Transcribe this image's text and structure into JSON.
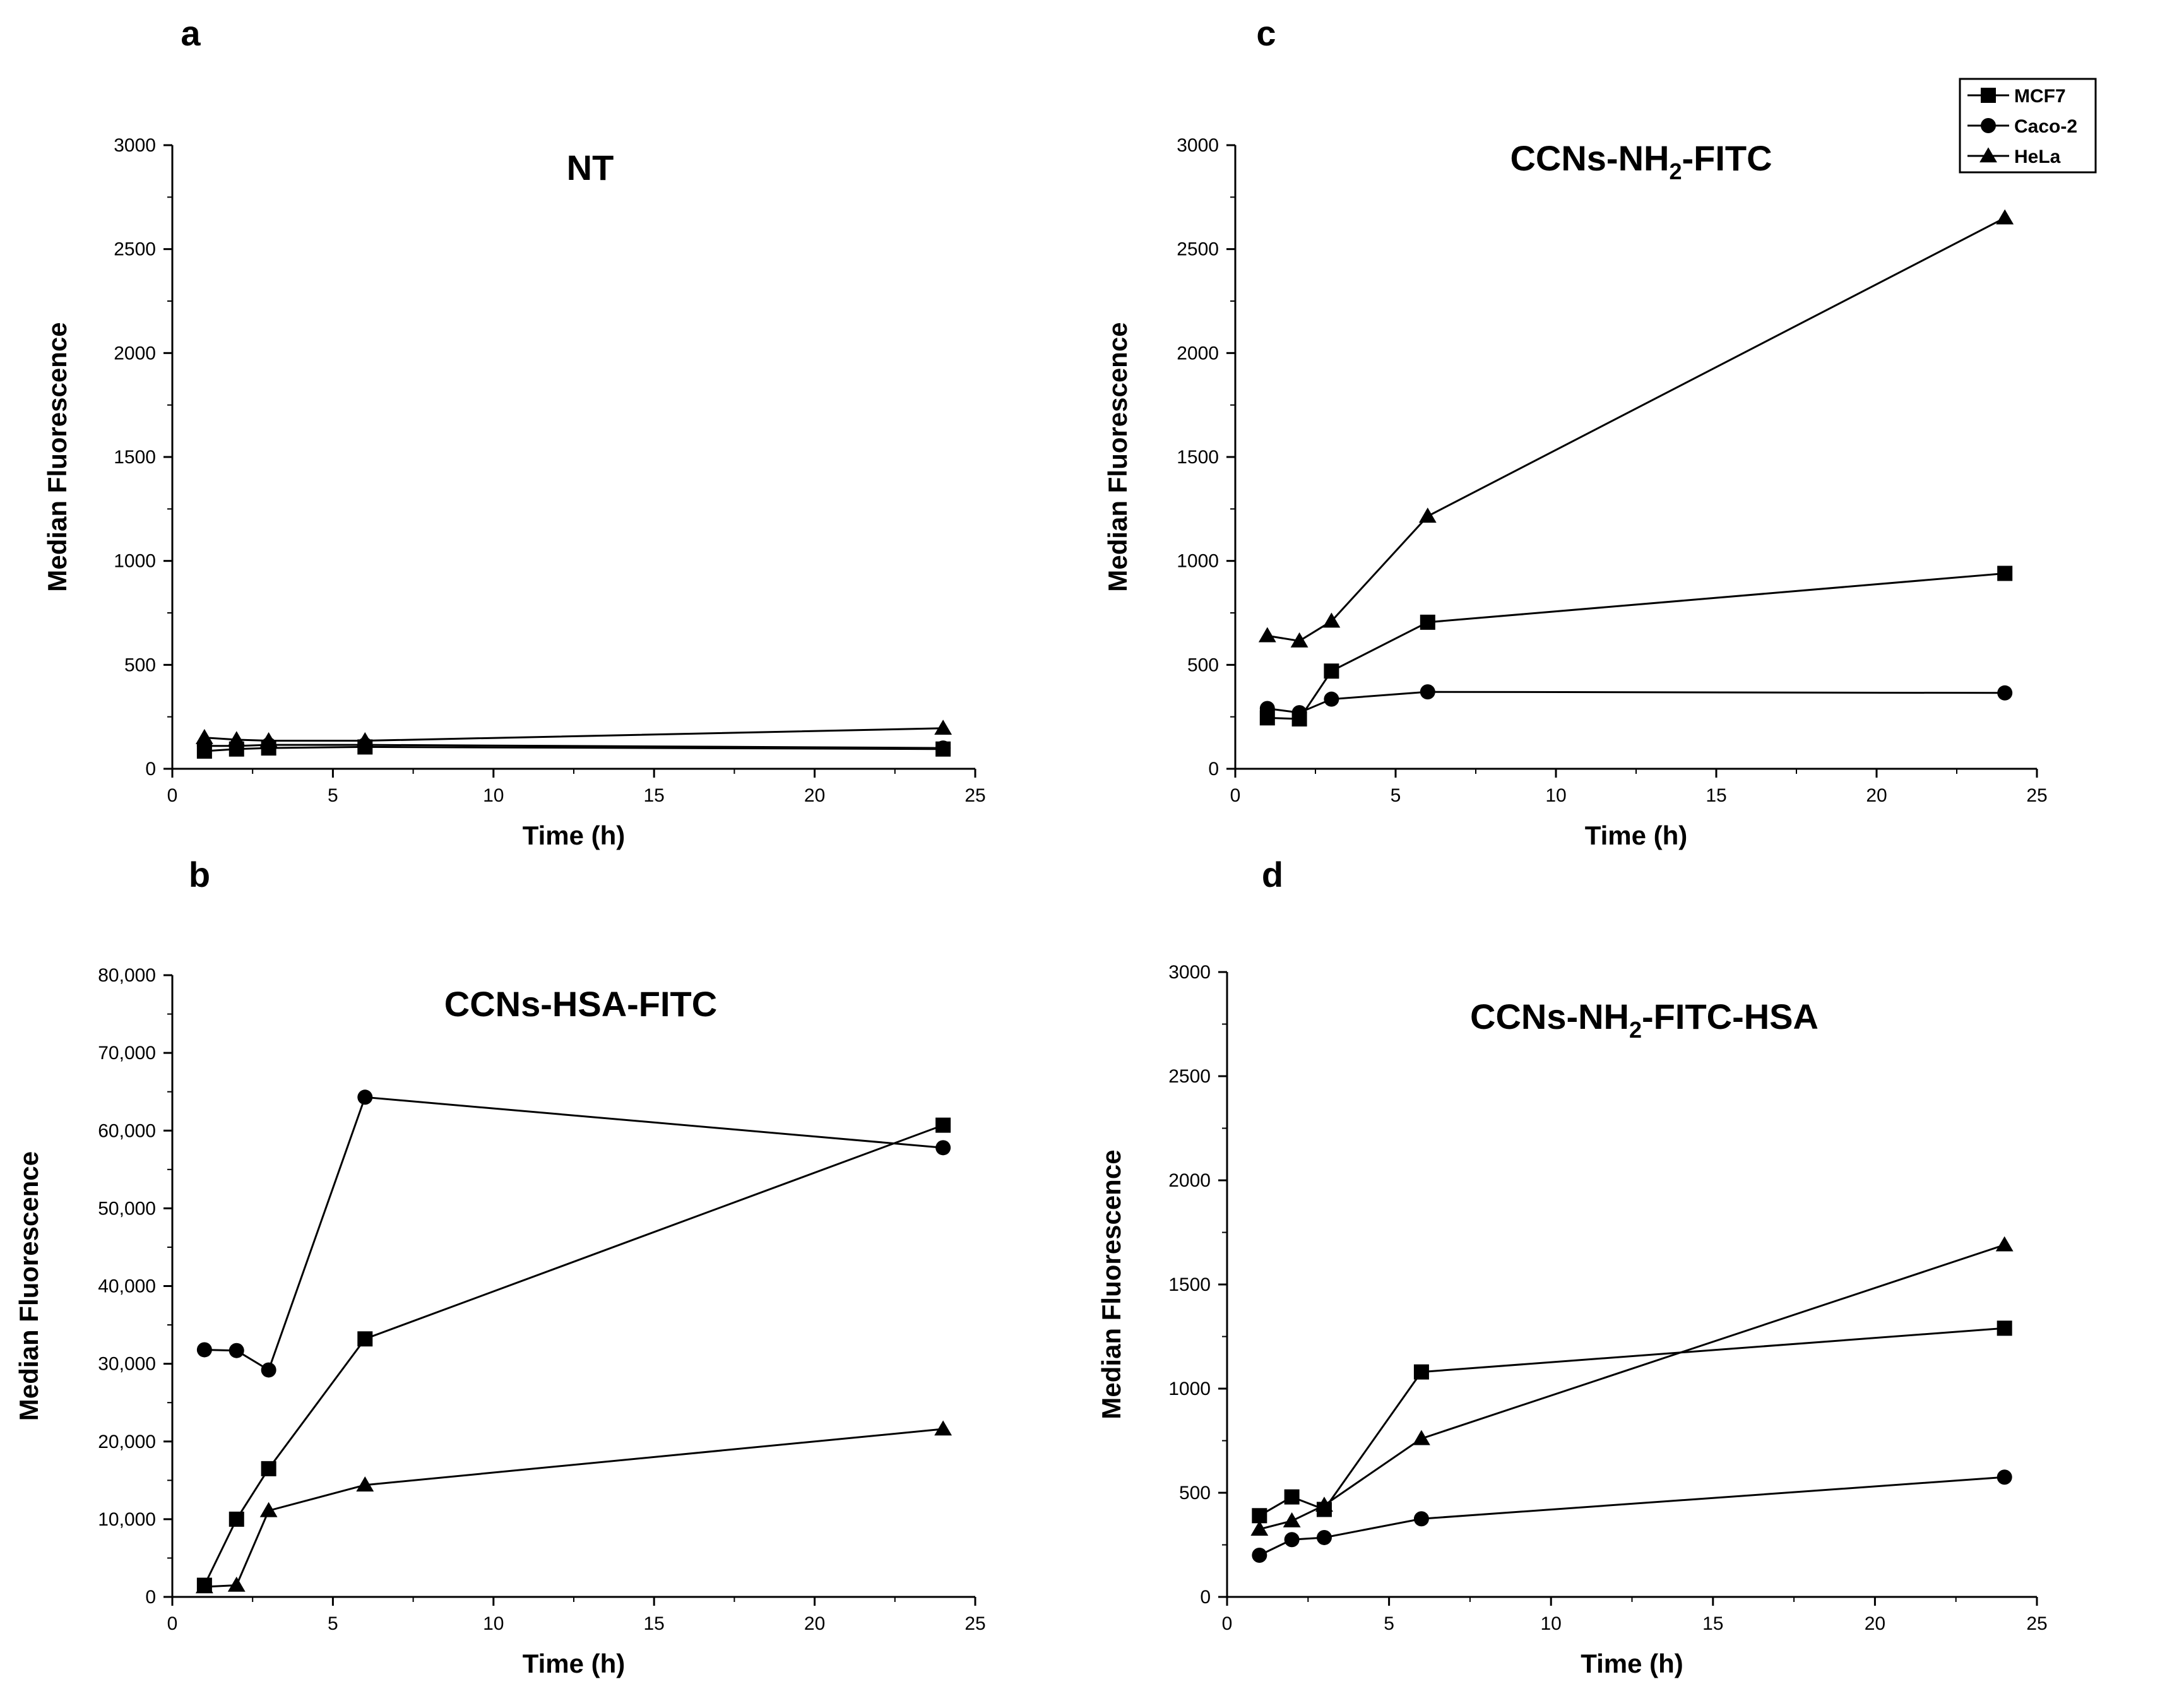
{
  "chart_data": [
    {
      "panel": "a",
      "type": "line",
      "title": "NT",
      "xlabel": "Time (h)",
      "ylabel": "Median Fluorescence",
      "xlim": [
        0,
        25
      ],
      "ylim": [
        0,
        3000
      ],
      "xticks": [
        0,
        5,
        10,
        15,
        20,
        25
      ],
      "yticks": [
        0,
        500,
        1000,
        1500,
        2000,
        2500,
        3000
      ],
      "x": [
        1,
        2,
        3,
        6,
        24
      ],
      "series": [
        {
          "name": "MCF7",
          "marker": "square",
          "values": [
            85,
            95,
            100,
            105,
            95
          ]
        },
        {
          "name": "Caco-2",
          "marker": "circle",
          "values": [
            110,
            110,
            115,
            115,
            100
          ]
        },
        {
          "name": "HeLa",
          "marker": "triangle",
          "values": [
            150,
            140,
            135,
            135,
            195
          ]
        }
      ]
    },
    {
      "panel": "b",
      "type": "line",
      "title": "CCNs-HSA-FITC",
      "xlabel": "Time (h)",
      "ylabel": "Median Fluorescence",
      "xlim": [
        0,
        25
      ],
      "ylim": [
        0,
        80000
      ],
      "xticks": [
        0,
        5,
        10,
        15,
        20,
        25
      ],
      "yticks": [
        0,
        10000,
        20000,
        30000,
        40000,
        50000,
        60000,
        70000,
        80000
      ],
      "ytick_labels": [
        "0",
        "10,000",
        "20,000",
        "30,000",
        "40,000",
        "50,000",
        "60,000",
        "70,000",
        "80,000"
      ],
      "x": [
        1,
        2,
        3,
        6,
        24
      ],
      "series": [
        {
          "name": "MCF7",
          "marker": "square",
          "values": [
            1500,
            10000,
            16500,
            33200,
            60700
          ]
        },
        {
          "name": "Caco-2",
          "marker": "circle",
          "values": [
            31800,
            31700,
            29200,
            64300,
            57800
          ]
        },
        {
          "name": "HeLa",
          "marker": "triangle",
          "values": [
            1300,
            1500,
            11100,
            14400,
            21600
          ]
        }
      ]
    },
    {
      "panel": "c",
      "type": "line",
      "title": "CCNs-NH",
      "title_sub": "2",
      "title_suffix": "-FITC",
      "xlabel": "Time (h)",
      "ylabel": "Median Fluorescence",
      "xlim": [
        0,
        25
      ],
      "ylim": [
        0,
        3000
      ],
      "xticks": [
        0,
        5,
        10,
        15,
        20,
        25
      ],
      "yticks": [
        0,
        500,
        1000,
        1500,
        2000,
        2500,
        3000
      ],
      "x": [
        1,
        2,
        3,
        6,
        24
      ],
      "legend": "top-right",
      "series": [
        {
          "name": "MCF7",
          "marker": "square",
          "values": [
            245,
            240,
            470,
            705,
            940
          ]
        },
        {
          "name": "Caco-2",
          "marker": "circle",
          "values": [
            290,
            270,
            335,
            370,
            365
          ]
        },
        {
          "name": "HeLa",
          "marker": "triangle",
          "values": [
            640,
            615,
            710,
            1215,
            2650
          ]
        }
      ]
    },
    {
      "panel": "d",
      "type": "line",
      "title": "CCNs-NH",
      "title_sub": "2",
      "title_suffix": "-FITC-HSA",
      "xlabel": "Time (h)",
      "ylabel": "Median Fluorescence",
      "xlim": [
        0,
        25
      ],
      "ylim": [
        0,
        3000
      ],
      "xticks": [
        0,
        5,
        10,
        15,
        20,
        25
      ],
      "yticks": [
        0,
        500,
        1000,
        1500,
        2000,
        2500,
        3000
      ],
      "x": [
        1,
        2,
        3,
        6,
        24
      ],
      "series": [
        {
          "name": "MCF7",
          "marker": "square",
          "values": [
            390,
            480,
            420,
            1080,
            1290
          ]
        },
        {
          "name": "Caco-2",
          "marker": "circle",
          "values": [
            200,
            275,
            285,
            375,
            575
          ]
        },
        {
          "name": "HeLa",
          "marker": "triangle",
          "values": [
            325,
            365,
            440,
            760,
            1690
          ]
        }
      ]
    }
  ]
}
